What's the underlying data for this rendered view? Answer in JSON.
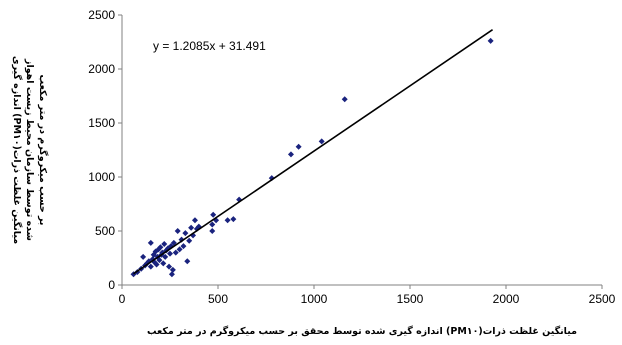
{
  "chart_data": {
    "type": "scatter",
    "title": "",
    "xlabel": "میانگین غلظت ذرات(PM۱۰) اندازه گیری شده توسط محقق بر حسب میکروگرم در متر مکعب",
    "ylabel_lines": [
      "میانگین غلظت ذرات(PM۱۰) اندازه گیری",
      "شده توسط سازمان محیط زیست اهواز",
      "بر حسب میکروگرم در متر مکعب"
    ],
    "xlim": [
      0,
      2500
    ],
    "ylim": [
      0,
      2500
    ],
    "xticks": [
      "0",
      "500",
      "1000",
      "1500",
      "2000",
      "2500"
    ],
    "yticks": [
      "0",
      "500",
      "1000",
      "1500",
      "2000",
      "2500"
    ],
    "grid": false,
    "legend": "none",
    "marker_color": "#1a237e",
    "trendline": {
      "equation": "y = 1.2085x + 31.491",
      "slope": 1.2085,
      "intercept": 31.491,
      "x_range": [
        60,
        1930
      ],
      "color": "#000000"
    },
    "points": [
      {
        "x": 60,
        "y": 100
      },
      {
        "x": 80,
        "y": 120
      },
      {
        "x": 100,
        "y": 150
      },
      {
        "x": 110,
        "y": 260
      },
      {
        "x": 120,
        "y": 180
      },
      {
        "x": 130,
        "y": 200
      },
      {
        "x": 140,
        "y": 220
      },
      {
        "x": 150,
        "y": 170
      },
      {
        "x": 150,
        "y": 390
      },
      {
        "x": 160,
        "y": 240
      },
      {
        "x": 165,
        "y": 280
      },
      {
        "x": 170,
        "y": 210
      },
      {
        "x": 175,
        "y": 310
      },
      {
        "x": 180,
        "y": 190
      },
      {
        "x": 185,
        "y": 260
      },
      {
        "x": 190,
        "y": 330
      },
      {
        "x": 195,
        "y": 230
      },
      {
        "x": 200,
        "y": 350
      },
      {
        "x": 205,
        "y": 280
      },
      {
        "x": 210,
        "y": 300
      },
      {
        "x": 215,
        "y": 200
      },
      {
        "x": 220,
        "y": 380
      },
      {
        "x": 225,
        "y": 260
      },
      {
        "x": 230,
        "y": 320
      },
      {
        "x": 240,
        "y": 340
      },
      {
        "x": 245,
        "y": 170
      },
      {
        "x": 250,
        "y": 290
      },
      {
        "x": 255,
        "y": 360
      },
      {
        "x": 260,
        "y": 100
      },
      {
        "x": 265,
        "y": 140
      },
      {
        "x": 270,
        "y": 390
      },
      {
        "x": 280,
        "y": 300
      },
      {
        "x": 290,
        "y": 500
      },
      {
        "x": 300,
        "y": 330
      },
      {
        "x": 310,
        "y": 420
      },
      {
        "x": 320,
        "y": 360
      },
      {
        "x": 330,
        "y": 480
      },
      {
        "x": 340,
        "y": 220
      },
      {
        "x": 350,
        "y": 410
      },
      {
        "x": 360,
        "y": 530
      },
      {
        "x": 370,
        "y": 460
      },
      {
        "x": 380,
        "y": 600
      },
      {
        "x": 390,
        "y": 520
      },
      {
        "x": 400,
        "y": 540
      },
      {
        "x": 470,
        "y": 500
      },
      {
        "x": 470,
        "y": 560
      },
      {
        "x": 475,
        "y": 650
      },
      {
        "x": 490,
        "y": 600
      },
      {
        "x": 550,
        "y": 600
      },
      {
        "x": 580,
        "y": 610
      },
      {
        "x": 610,
        "y": 790
      },
      {
        "x": 780,
        "y": 990
      },
      {
        "x": 880,
        "y": 1210
      },
      {
        "x": 920,
        "y": 1280
      },
      {
        "x": 1040,
        "y": 1330
      },
      {
        "x": 1160,
        "y": 1720
      },
      {
        "x": 1920,
        "y": 2260
      }
    ],
    "equation_position": "top-left"
  }
}
